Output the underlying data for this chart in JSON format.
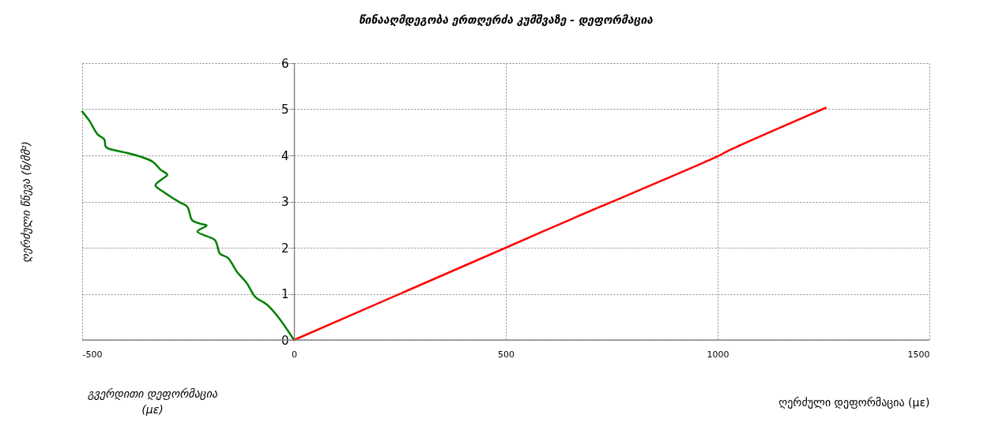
{
  "chart_data": {
    "type": "line",
    "title": "წინააღმდეგობა ერთღერძა კუმშვაზე  - დეფორმაცია",
    "xlabel": "ღერძული დეფორმაცია (με)",
    "ylabel": "ღერძული წნევა (ნ/მმ²)",
    "annotations": [
      "გვერდითი დეფორმაცია (με)"
    ],
    "xlim": [
      -500,
      1500
    ],
    "xticks": [
      -500,
      0,
      500,
      1000,
      1500
    ],
    "ylim": [
      0,
      6
    ],
    "yticks": [
      0,
      1,
      2,
      3,
      4,
      5,
      6
    ],
    "grid": true,
    "line_style": "solid",
    "marker": "none",
    "series": [
      {
        "color": "#008000",
        "x": [
          -500,
          -483,
          -464,
          -448,
          -445,
          -439,
          -402,
          -365,
          -333,
          -315,
          -299,
          -311,
          -327,
          -308,
          -271,
          -252,
          -240,
          -221,
          -206,
          -228,
          -187,
          -181,
          -175,
          -156,
          -134,
          -112,
          -91,
          -63,
          -35,
          0
        ],
        "values": [
          4.95,
          4.75,
          4.46,
          4.35,
          4.2,
          4.15,
          4.07,
          3.98,
          3.86,
          3.69,
          3.58,
          3.49,
          3.35,
          3.21,
          2.99,
          2.89,
          2.59,
          2.52,
          2.48,
          2.35,
          2.17,
          2.04,
          1.87,
          1.78,
          1.47,
          1.24,
          0.93,
          0.76,
          0.47,
          0
        ]
      },
      {
        "color": "#ff0000",
        "x": [
          0,
          500,
          660,
          1000,
          1027,
          1255
        ],
        "values": [
          0,
          2.0,
          2.64,
          3.98,
          4.11,
          5.03
        ]
      }
    ]
  }
}
